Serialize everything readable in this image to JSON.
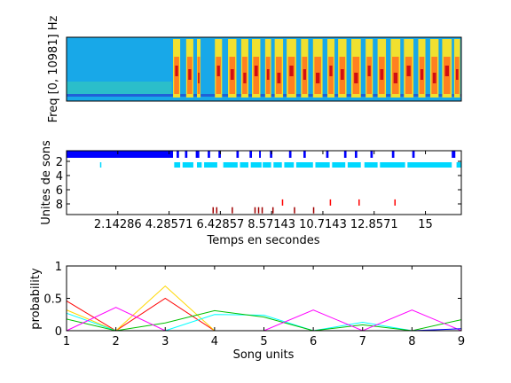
{
  "panels": {
    "spectrogram": {
      "ylabel": "Freq [0, 10981] Hz"
    },
    "units": {
      "ylabel": "Unites de sons",
      "xlabel": "Temps en secondes"
    },
    "probability": {
      "ylabel": "probability",
      "xlabel": "Song units"
    }
  },
  "chart_data": [
    {
      "type": "heatmap",
      "title": "",
      "ylabel": "Freq [0, 10981] Hz",
      "x_range_seconds": [
        0,
        16.5
      ],
      "description_colormap": "jet",
      "quiet_until_seconds": 4.4,
      "song_segments_seconds": [
        [
          4.45,
          4.75
        ],
        [
          5.0,
          5.3
        ],
        [
          5.45,
          5.6
        ],
        [
          6.2,
          6.5
        ],
        [
          6.75,
          7.1
        ],
        [
          7.3,
          7.6
        ],
        [
          7.75,
          8.1
        ],
        [
          8.3,
          8.55
        ],
        [
          8.7,
          9.05
        ],
        [
          9.2,
          9.6
        ],
        [
          9.8,
          10.1
        ],
        [
          10.3,
          10.7
        ],
        [
          10.9,
          11.2
        ],
        [
          11.35,
          11.7
        ],
        [
          11.9,
          12.3
        ],
        [
          12.5,
          12.8
        ],
        [
          13.0,
          13.35
        ],
        [
          13.55,
          13.95
        ],
        [
          14.1,
          14.5
        ],
        [
          14.7,
          15.0
        ],
        [
          15.2,
          15.55
        ],
        [
          15.7,
          16.1
        ],
        [
          16.2,
          16.45
        ]
      ]
    },
    {
      "type": "scatter",
      "title": "",
      "xlabel": "Temps en secondes",
      "ylabel": "Unites de sons",
      "xlim": [
        0,
        16.5
      ],
      "ylim": [
        0.5,
        9.5
      ],
      "y_reversed": true,
      "x_ticks": [
        "2.14286",
        "4.28571",
        "6.42857",
        "8.57143",
        "10.7143",
        "12.8571",
        "15"
      ],
      "x_tick_values": [
        2.14286,
        4.28571,
        6.42857,
        8.57143,
        10.7143,
        12.8571,
        15
      ],
      "y_ticks": [
        "2",
        "4",
        "6",
        "8"
      ],
      "y_tick_values": [
        2,
        4,
        6,
        8
      ],
      "series": [
        {
          "color": "#0000ff",
          "unit": 1,
          "segments_seconds": [
            [
              0,
              4.45
            ],
            [
              4.6,
              4.7
            ],
            [
              4.95,
              5.05
            ],
            [
              5.4,
              5.55
            ],
            [
              5.9,
              6.0
            ],
            [
              6.35,
              6.45
            ],
            [
              7.1,
              7.2
            ],
            [
              7.65,
              7.75
            ],
            [
              8.05,
              8.12
            ],
            [
              8.5,
              8.6
            ],
            [
              9.3,
              9.4
            ],
            [
              9.9,
              10.0
            ],
            [
              10.85,
              10.95
            ],
            [
              11.6,
              11.7
            ],
            [
              12.05,
              12.15
            ],
            [
              12.7,
              12.8
            ],
            [
              13.6,
              13.7
            ],
            [
              14.45,
              14.55
            ],
            [
              16.1,
              16.25
            ]
          ]
        },
        {
          "color": "#00d8ff",
          "unit": 2.5,
          "segments_seconds": [
            [
              1.4,
              1.45
            ],
            [
              4.5,
              4.75
            ],
            [
              4.85,
              5.3
            ],
            [
              5.45,
              5.65
            ],
            [
              5.75,
              6.3
            ],
            [
              6.55,
              7.15
            ],
            [
              7.25,
              7.6
            ],
            [
              7.7,
              8.15
            ],
            [
              8.2,
              8.55
            ],
            [
              8.65,
              9.0
            ],
            [
              9.1,
              9.5
            ],
            [
              9.6,
              10.3
            ],
            [
              10.4,
              11.0
            ],
            [
              11.1,
              11.65
            ],
            [
              11.75,
              12.3
            ],
            [
              12.45,
              13.0
            ],
            [
              13.1,
              14.15
            ],
            [
              14.25,
              16.1
            ],
            [
              16.3,
              16.5
            ]
          ]
        },
        {
          "color": "#ff0000",
          "unit": 7.8,
          "segments_seconds": [
            [
              9.0,
              9.04
            ],
            [
              11.0,
              11.04
            ],
            [
              12.2,
              12.24
            ],
            [
              13.7,
              13.74
            ]
          ]
        },
        {
          "color": "#a00000",
          "unit": 8.9,
          "segments_seconds": [
            [
              6.1,
              6.14
            ],
            [
              6.25,
              6.29
            ],
            [
              6.9,
              6.94
            ],
            [
              7.85,
              7.89
            ],
            [
              8.0,
              8.04
            ],
            [
              8.15,
              8.19
            ],
            [
              8.6,
              8.64
            ],
            [
              9.5,
              9.54
            ],
            [
              10.3,
              10.34
            ]
          ]
        }
      ]
    },
    {
      "type": "line",
      "title": "",
      "xlabel": "Song units",
      "ylabel": "probability",
      "xlim": [
        1,
        9
      ],
      "ylim": [
        0,
        1
      ],
      "x": [
        1,
        2,
        3,
        4,
        5,
        6,
        7,
        8,
        9
      ],
      "x_ticks": [
        "1",
        "2",
        "3",
        "4",
        "5",
        "6",
        "7",
        "8",
        "9"
      ],
      "y_ticks": [
        "0",
        "0.5",
        "1"
      ],
      "y_tick_values": [
        0,
        0.5,
        1
      ],
      "series": [
        {
          "color": "#ff0000",
          "values": [
            0.46,
            0.0,
            0.5,
            0.0,
            0.0,
            0.0,
            0.0,
            0.0,
            0.0
          ]
        },
        {
          "color": "#ffd700",
          "values": [
            0.32,
            0.0,
            0.69,
            0.0,
            0.0,
            0.0,
            0.0,
            0.0,
            0.0
          ]
        },
        {
          "color": "#00ffff",
          "values": [
            0.27,
            0.0,
            0.0,
            0.25,
            0.24,
            0.0,
            0.13,
            0.0,
            0.0
          ]
        },
        {
          "color": "#00c000",
          "values": [
            0.18,
            0.0,
            0.12,
            0.31,
            0.21,
            0.0,
            0.09,
            0.0,
            0.17
          ]
        },
        {
          "color": "#ff00ff",
          "values": [
            0.0,
            0.36,
            0.0,
            0.0,
            0.0,
            0.32,
            0.0,
            0.32,
            0.0
          ]
        },
        {
          "color": "#0000ff",
          "values": [
            0.0,
            0.0,
            0.0,
            0.0,
            0.0,
            0.0,
            0.0,
            0.0,
            0.03
          ]
        }
      ]
    }
  ]
}
